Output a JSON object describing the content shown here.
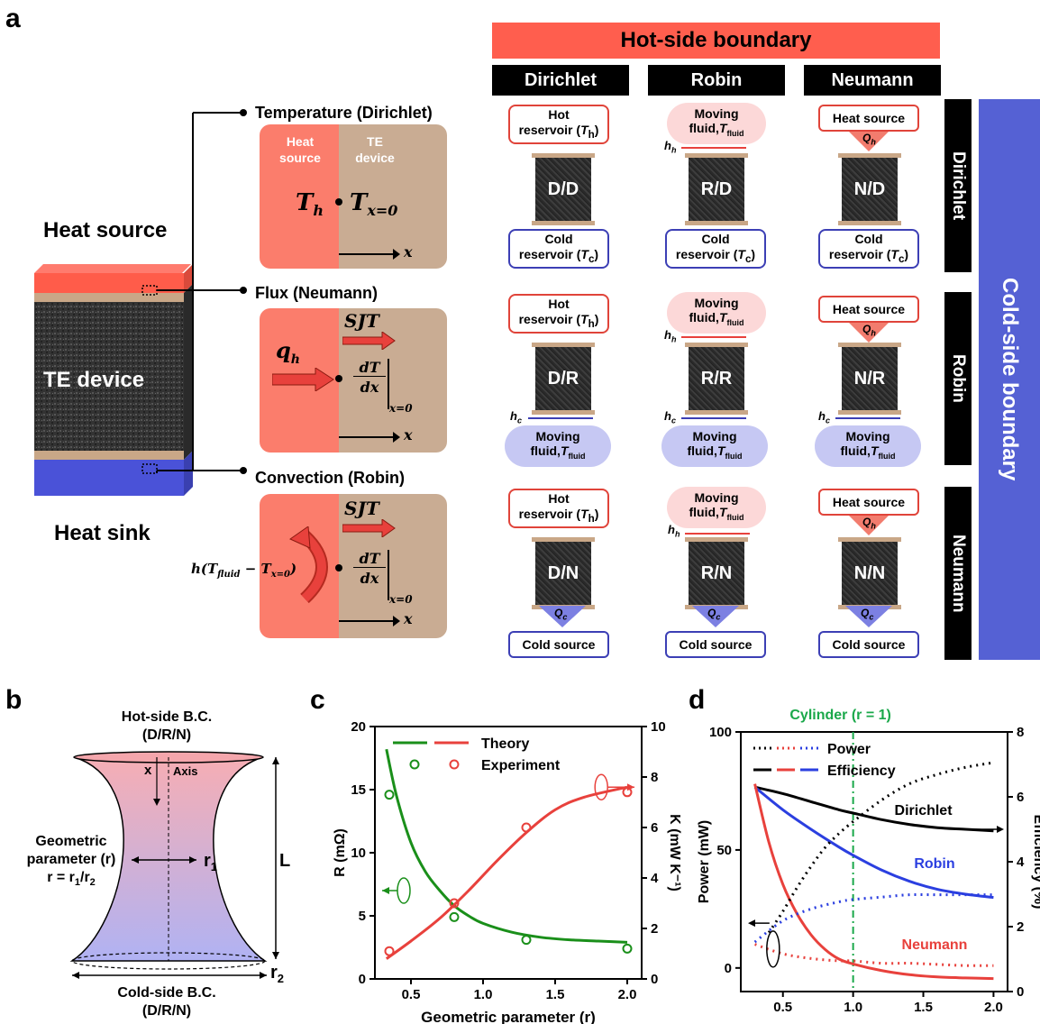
{
  "panels": {
    "a": "a",
    "b": "b",
    "c": "c",
    "d": "d"
  },
  "panel_a": {
    "hot_side_title": "Hot-side boundary",
    "cold_side_title": "Cold-side boundary",
    "col_headers": [
      "Dirichlet",
      "Robin",
      "Neumann"
    ],
    "row_headers": [
      "Dirichlet",
      "Robin",
      "Neumann"
    ],
    "device": {
      "heat_source": "Heat source",
      "te_device": "TE device",
      "heat_sink": "Heat sink"
    },
    "bc_labels": {
      "temperature": "Temperature (Dirichlet)",
      "flux": "Flux (Neumann)",
      "convection": "Convection (Robin)"
    },
    "inset_temp": {
      "heat_source": "Heat source",
      "te_device": "TE device",
      "th": "T",
      "th_sub": "h",
      "tx": "T",
      "tx_sub": "x=0",
      "xaxis": "x"
    },
    "inset_flux": {
      "sjt": "SJT",
      "qh": "q",
      "qh_sub": "h",
      "dtdx": "dT/dx",
      "eval": "x=0",
      "xaxis": "x"
    },
    "inset_conv": {
      "sjt": "SJT",
      "expr": "h(T",
      "expr_sub1": "fluid",
      "expr_mid": " − T",
      "expr_sub2": "x=0",
      "expr_end": ")",
      "dtdx": "dT/dx",
      "eval": "x=0",
      "xaxis": "x"
    },
    "cells": [
      [
        "D/D",
        "R/D",
        "N/D"
      ],
      [
        "D/R",
        "R/R",
        "N/R"
      ],
      [
        "D/N",
        "R/N",
        "N/N"
      ]
    ],
    "hot_reservoir": "Hot reservoir (T",
    "hot_reservoir_sub": "h",
    "cold_reservoir": "Cold reservoir (T",
    "cold_reservoir_sub": "c",
    "moving_fluid": "Moving fluid,T",
    "fluid_sub": "fluid",
    "heat_source": "Heat source",
    "cold_source": "Cold source",
    "hh": "h",
    "hh_sub": "h",
    "hc": "h",
    "hc_sub": "c",
    "Qh": "Q",
    "Qh_sub": "h",
    "Qc": "Q",
    "Qc_sub": "c"
  },
  "panel_b": {
    "hot_bc": "Hot-side B.C.",
    "hot_bc_sub": "(D/R/N)",
    "cold_bc": "Cold-side B.C.",
    "cold_bc_sub": "(D/R/N)",
    "x": "x",
    "axis": "Axis",
    "geo": "Geometric",
    "geo2": "parameter (r)",
    "geo3": "r = r",
    "geo3_sub1": "1",
    "geo3_mid": "/r",
    "geo3_sub2": "2",
    "r1": "r",
    "r1_sub": "1",
    "r2": "r",
    "r2_sub": "2",
    "L": "L"
  },
  "chart_data": [
    {
      "type": "line",
      "panel": "c",
      "xlabel": "Geometric parameter (r)",
      "ylabel_left": "R (mΩ)",
      "ylabel_right": "K (mW K⁻¹)",
      "xlim": [
        0.25,
        2.1
      ],
      "ylim_left": [
        0,
        20
      ],
      "ylim_right": [
        0,
        10
      ],
      "x_ticks": [
        "0.5",
        "1.0",
        "1.5",
        "2.0"
      ],
      "y_left_ticks": [
        "0",
        "5",
        "10",
        "15",
        "20"
      ],
      "y_right_ticks": [
        "0",
        "2",
        "4",
        "6",
        "8",
        "10"
      ],
      "legend": [
        "Theory",
        "Experiment"
      ],
      "colors": {
        "R": "#1a8f1a",
        "K": "#e8413c"
      },
      "series": [
        {
          "name": "R theory",
          "axis": "left",
          "x": [
            0.33,
            0.4,
            0.5,
            0.6,
            0.7,
            0.8,
            0.9,
            1.0,
            1.2,
            1.4,
            1.6,
            1.8,
            2.0
          ],
          "y": [
            18.2,
            14.5,
            10.8,
            8.5,
            7.0,
            5.8,
            5.0,
            4.4,
            3.7,
            3.3,
            3.1,
            3.0,
            2.9
          ]
        },
        {
          "name": "R experiment",
          "axis": "left",
          "x": [
            0.35,
            0.8,
            1.3,
            2.0
          ],
          "y": [
            14.6,
            4.9,
            3.1,
            2.4
          ]
        },
        {
          "name": "K theory",
          "axis": "right",
          "x": [
            0.33,
            0.5,
            0.7,
            0.9,
            1.1,
            1.3,
            1.5,
            1.7,
            2.0
          ],
          "y": [
            0.8,
            1.5,
            2.4,
            3.5,
            4.7,
            5.8,
            6.7,
            7.2,
            7.6
          ]
        },
        {
          "name": "K experiment",
          "axis": "right",
          "x": [
            0.35,
            0.8,
            1.3,
            2.0
          ],
          "y": [
            1.1,
            3.0,
            6.0,
            7.4
          ]
        }
      ],
      "legend_markers": {
        "R": 17,
        "K": 8.5
      }
    },
    {
      "type": "line",
      "panel": "d",
      "title": "Cylinder (r = 1)",
      "xlabel": "Geometric parameter (r)",
      "ylabel_left": "Power (mW)",
      "ylabel_right": "Efficiency (%)",
      "xlim": [
        0.2,
        2.1
      ],
      "ylim_left": [
        -10,
        100
      ],
      "ylim_right": [
        0,
        8
      ],
      "x_ticks": [
        "0.5",
        "1.0",
        "1.5",
        "2.0"
      ],
      "y_left_ticks": [
        "0",
        "50",
        "100"
      ],
      "y_right_ticks": [
        "0",
        "2",
        "4",
        "6",
        "8"
      ],
      "legend": [
        "Power",
        "Efficiency"
      ],
      "annotations": [
        "Dirichlet",
        "Robin",
        "Neumann"
      ],
      "colors": {
        "Dirichlet": "#000000",
        "Robin": "#2b3fe0",
        "Neumann": "#e8413c",
        "cylinder": "#1aa84a"
      },
      "series": [
        {
          "name": "Dirichlet",
          "kind": "efficiency",
          "x": [
            0.3,
            0.5,
            0.7,
            0.9,
            1.0,
            1.2,
            1.4,
            1.6,
            1.8,
            2.0
          ],
          "y": [
            6.3,
            6.1,
            5.85,
            5.6,
            5.5,
            5.3,
            5.15,
            5.05,
            5.0,
            4.95
          ]
        },
        {
          "name": "Robin",
          "kind": "efficiency",
          "x": [
            0.3,
            0.5,
            0.7,
            0.9,
            1.0,
            1.2,
            1.4,
            1.6,
            1.8,
            2.0
          ],
          "y": [
            6.3,
            5.6,
            5.0,
            4.45,
            4.2,
            3.75,
            3.4,
            3.15,
            3.0,
            2.9
          ]
        },
        {
          "name": "Neumann",
          "kind": "efficiency",
          "x": [
            0.3,
            0.4,
            0.5,
            0.6,
            0.7,
            0.8,
            0.9,
            1.0,
            1.2,
            1.4,
            1.6,
            1.8,
            2.0
          ],
          "y": [
            6.4,
            4.6,
            3.3,
            2.4,
            1.75,
            1.3,
            1.0,
            0.85,
            0.65,
            0.52,
            0.45,
            0.42,
            0.4
          ]
        },
        {
          "name": "Dirichlet",
          "kind": "power",
          "x": [
            0.4,
            0.5,
            0.6,
            0.7,
            0.8,
            0.9,
            1.0,
            1.2,
            1.4,
            1.6,
            1.8,
            2.0
          ],
          "y": [
            15,
            24,
            34,
            43,
            51,
            57,
            62,
            71,
            78,
            82,
            85,
            87
          ]
        },
        {
          "name": "Robin",
          "kind": "power",
          "x": [
            0.3,
            0.5,
            0.7,
            0.9,
            1.0,
            1.2,
            1.4,
            1.6,
            1.8,
            2.0
          ],
          "y": [
            11,
            20,
            25,
            28,
            29,
            30,
            31,
            31,
            31,
            31
          ]
        },
        {
          "name": "Neumann",
          "kind": "power",
          "x": [
            0.3,
            0.5,
            0.7,
            0.9,
            1.0,
            1.2,
            1.4,
            1.6,
            1.8,
            2.0
          ],
          "y": [
            10,
            6,
            4,
            3,
            3,
            2,
            2,
            1.5,
            1,
            1
          ]
        }
      ]
    }
  ]
}
